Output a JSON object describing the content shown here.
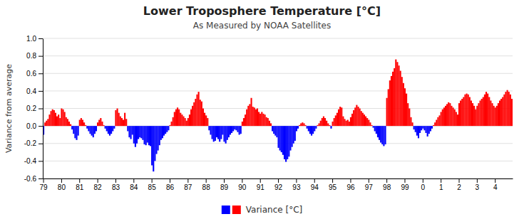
{
  "chart_data": {
    "type": "bar",
    "title": "Lower Troposphere Temperature [°C]",
    "subtitle": "As Measured by NOAA Satellites",
    "y_label": "Variance from average",
    "categories": [
      "79",
      null,
      null,
      null,
      null,
      null,
      null,
      null,
      null,
      null,
      null,
      null,
      "80",
      null,
      null,
      null,
      null,
      null,
      null,
      null,
      null,
      null,
      null,
      null,
      "81",
      null,
      null,
      null,
      null,
      null,
      null,
      null,
      null,
      null,
      null,
      null,
      "82",
      null,
      null,
      null,
      null,
      null,
      null,
      null,
      null,
      null,
      null,
      null,
      "83",
      null,
      null,
      null,
      null,
      null,
      null,
      null,
      null,
      null,
      null,
      null,
      "84",
      null,
      null,
      null,
      null,
      null,
      null,
      null,
      null,
      null,
      null,
      null,
      "85",
      null,
      null,
      null,
      null,
      null,
      null,
      null,
      null,
      null,
      null,
      null,
      "86",
      null,
      null,
      null,
      null,
      null,
      null,
      null,
      null,
      null,
      null,
      null,
      "87",
      null,
      null,
      null,
      null,
      null,
      null,
      null,
      null,
      null,
      null,
      null,
      "88",
      null,
      null,
      null,
      null,
      null,
      null,
      null,
      null,
      null,
      null,
      null,
      "89",
      null,
      null,
      null,
      null,
      null,
      null,
      null,
      null,
      null,
      null,
      null,
      "90",
      null,
      null,
      null,
      null,
      null,
      null,
      null,
      null,
      null,
      null,
      null,
      "91",
      null,
      null,
      null,
      null,
      null,
      null,
      null,
      null,
      null,
      null,
      null,
      "92",
      null,
      null,
      null,
      null,
      null,
      null,
      null,
      null,
      null,
      null,
      null,
      "93",
      null,
      null,
      null,
      null,
      null,
      null,
      null,
      null,
      null,
      null,
      null,
      "94",
      null,
      null,
      null,
      null,
      null,
      null,
      null,
      null,
      null,
      null,
      null,
      "95",
      null,
      null,
      null,
      null,
      null,
      null,
      null,
      null,
      null,
      null,
      null,
      "96",
      null,
      null,
      null,
      null,
      null,
      null,
      null,
      null,
      null,
      null,
      null,
      "97",
      null,
      null,
      null,
      null,
      null,
      null,
      null,
      null,
      null,
      null,
      null,
      "98",
      null,
      null,
      null,
      null,
      null,
      null,
      null,
      null,
      null,
      null,
      null,
      "99",
      null,
      null,
      null,
      null,
      null,
      null,
      null,
      null,
      null,
      null,
      null,
      "0",
      null,
      null,
      null,
      null,
      null,
      null,
      null,
      null,
      null,
      null,
      null,
      "1",
      null,
      null,
      null,
      null,
      null,
      null,
      null,
      null,
      null,
      null,
      null,
      "2",
      null,
      null,
      null,
      null,
      null,
      null,
      null,
      null,
      null,
      null,
      null,
      "3",
      null,
      null,
      null,
      null,
      null,
      null,
      null,
      null,
      null,
      null,
      null,
      "4",
      null,
      null,
      null,
      null,
      null,
      null,
      null,
      null,
      null,
      null,
      null
    ],
    "series": [
      {
        "name": "Variance [°C]",
        "values": [
          -0.1,
          0.04,
          0.06,
          0.08,
          0.13,
          0.17,
          0.19,
          0.18,
          0.15,
          0.11,
          0.13,
          0.09,
          0.2,
          0.19,
          0.16,
          0.1,
          0.08,
          0.05,
          0.02,
          -0.04,
          -0.09,
          -0.14,
          -0.16,
          -0.11,
          0.07,
          0.09,
          0.07,
          0.04,
          0.01,
          -0.03,
          -0.06,
          -0.09,
          -0.11,
          -0.13,
          -0.09,
          -0.06,
          0.04,
          0.07,
          0.09,
          0.05,
          0.01,
          -0.03,
          -0.06,
          -0.09,
          -0.11,
          -0.09,
          -0.06,
          -0.03,
          0.18,
          0.2,
          0.15,
          0.11,
          0.09,
          0.07,
          0.15,
          0.08,
          -0.06,
          -0.13,
          -0.15,
          -0.1,
          -0.2,
          -0.24,
          -0.2,
          -0.15,
          -0.13,
          -0.14,
          -0.16,
          -0.21,
          -0.22,
          -0.19,
          -0.22,
          -0.23,
          -0.45,
          -0.52,
          -0.4,
          -0.32,
          -0.28,
          -0.22,
          -0.16,
          -0.14,
          -0.11,
          -0.09,
          -0.07,
          -0.05,
          0.01,
          0.05,
          0.1,
          0.16,
          0.19,
          0.21,
          0.19,
          0.15,
          0.13,
          0.11,
          0.09,
          0.06,
          0.09,
          0.13,
          0.19,
          0.23,
          0.27,
          0.31,
          0.36,
          0.39,
          0.3,
          0.28,
          0.2,
          0.15,
          0.12,
          0.09,
          -0.05,
          -0.1,
          -0.15,
          -0.18,
          -0.17,
          -0.13,
          -0.15,
          -0.18,
          -0.15,
          -0.1,
          -0.18,
          -0.2,
          -0.16,
          -0.13,
          -0.1,
          -0.08,
          -0.06,
          -0.04,
          -0.05,
          -0.07,
          -0.1,
          -0.09,
          0.05,
          0.09,
          0.13,
          0.19,
          0.23,
          0.25,
          0.32,
          0.22,
          0.21,
          0.19,
          0.2,
          0.16,
          0.14,
          0.16,
          0.14,
          0.13,
          0.1,
          0.09,
          0.06,
          0.03,
          -0.06,
          -0.09,
          -0.11,
          -0.13,
          -0.25,
          -0.28,
          -0.3,
          -0.33,
          -0.38,
          -0.41,
          -0.38,
          -0.35,
          -0.28,
          -0.24,
          -0.2,
          -0.17,
          -0.06,
          -0.03,
          0.01,
          0.03,
          0.04,
          0.03,
          0.01,
          -0.03,
          -0.06,
          -0.09,
          -0.11,
          -0.09,
          -0.06,
          -0.03,
          0.01,
          0.03,
          0.06,
          0.09,
          0.11,
          0.09,
          0.06,
          0.03,
          0.01,
          -0.03,
          0.05,
          0.09,
          0.12,
          0.15,
          0.19,
          0.22,
          0.21,
          0.11,
          0.08,
          0.06,
          0.07,
          0.05,
          0.1,
          0.14,
          0.18,
          0.21,
          0.24,
          0.22,
          0.2,
          0.17,
          0.15,
          0.13,
          0.11,
          0.09,
          0.07,
          0.04,
          0.01,
          -0.02,
          -0.06,
          -0.09,
          -0.13,
          -0.16,
          -0.19,
          -0.21,
          -0.23,
          -0.21,
          0.32,
          0.42,
          0.52,
          0.57,
          0.62,
          0.66,
          0.76,
          0.73,
          0.69,
          0.63,
          0.56,
          0.49,
          0.43,
          0.37,
          0.26,
          0.2,
          0.1,
          0.04,
          -0.04,
          -0.07,
          -0.11,
          -0.14,
          -0.08,
          -0.05,
          -0.03,
          -0.05,
          -0.08,
          -0.12,
          -0.09,
          -0.06,
          -0.03,
          0.01,
          0.04,
          0.07,
          0.1,
          0.12,
          0.16,
          0.19,
          0.21,
          0.23,
          0.25,
          0.27,
          0.26,
          0.23,
          0.21,
          0.19,
          0.16,
          0.13,
          0.26,
          0.29,
          0.31,
          0.33,
          0.36,
          0.37,
          0.36,
          0.33,
          0.29,
          0.26,
          0.23,
          0.19,
          0.23,
          0.26,
          0.29,
          0.31,
          0.33,
          0.36,
          0.39,
          0.37,
          0.33,
          0.29,
          0.26,
          0.23,
          0.21,
          0.23,
          0.26,
          0.29,
          0.31,
          0.33,
          0.36,
          0.39,
          0.41,
          0.39,
          0.36,
          0.31
        ],
        "colors": [
          "#0000ff",
          "#ff0000",
          "#ff0000",
          "#ff0000",
          "#ff0000",
          "#ff0000",
          "#ff0000",
          "#ff0000",
          "#ff0000",
          "#ff0000",
          "#ff0000",
          "#ff0000",
          "#ff0000",
          "#ff0000",
          "#ff0000",
          "#ff0000",
          "#ff0000",
          "#ff0000",
          "#ff0000",
          "#0000ff",
          "#0000ff",
          "#0000ff",
          "#0000ff",
          "#0000ff",
          "#ff0000",
          "#ff0000",
          "#ff0000",
          "#ff0000",
          "#ff0000",
          "#0000ff",
          "#0000ff",
          "#0000ff",
          "#0000ff",
          "#0000ff",
          "#0000ff",
          "#0000ff",
          "#ff0000",
          "#ff0000",
          "#ff0000",
          "#ff0000",
          "#ff0000",
          "#0000ff",
          "#0000ff",
          "#0000ff",
          "#0000ff",
          "#0000ff",
          "#0000ff",
          "#0000ff",
          "#ff0000",
          "#ff0000",
          "#ff0000",
          "#ff0000",
          "#ff0000",
          "#ff0000",
          "#ff0000",
          "#ff0000",
          "#0000ff",
          "#0000ff",
          "#0000ff",
          "#0000ff",
          "#0000ff",
          "#0000ff",
          "#0000ff",
          "#0000ff",
          "#0000ff",
          "#0000ff",
          "#0000ff",
          "#0000ff",
          "#0000ff",
          "#0000ff",
          "#0000ff",
          "#0000ff",
          "#0000ff",
          "#0000ff",
          "#0000ff",
          "#0000ff",
          "#0000ff",
          "#0000ff",
          "#0000ff",
          "#0000ff",
          "#0000ff",
          "#0000ff",
          "#0000ff",
          "#0000ff",
          "#ff0000",
          "#ff0000",
          "#ff0000",
          "#ff0000",
          "#ff0000",
          "#ff0000",
          "#ff0000",
          "#ff0000",
          "#ff0000",
          "#ff0000",
          "#ff0000",
          "#ff0000",
          "#ff0000",
          "#ff0000",
          "#ff0000",
          "#ff0000",
          "#ff0000",
          "#ff0000",
          "#ff0000",
          "#ff0000",
          "#ff0000",
          "#ff0000",
          "#ff0000",
          "#ff0000",
          "#ff0000",
          "#ff0000",
          "#0000ff",
          "#0000ff",
          "#0000ff",
          "#0000ff",
          "#0000ff",
          "#0000ff",
          "#0000ff",
          "#0000ff",
          "#0000ff",
          "#0000ff",
          "#0000ff",
          "#0000ff",
          "#0000ff",
          "#0000ff",
          "#0000ff",
          "#0000ff",
          "#0000ff",
          "#0000ff",
          "#0000ff",
          "#0000ff",
          "#0000ff",
          "#0000ff",
          "#ff0000",
          "#ff0000",
          "#ff0000",
          "#ff0000",
          "#ff0000",
          "#ff0000",
          "#ff0000",
          "#ff0000",
          "#ff0000",
          "#ff0000",
          "#ff0000",
          "#ff0000",
          "#ff0000",
          "#ff0000",
          "#ff0000",
          "#ff0000",
          "#ff0000",
          "#ff0000",
          "#ff0000",
          "#ff0000",
          "#0000ff",
          "#0000ff",
          "#0000ff",
          "#0000ff",
          "#0000ff",
          "#0000ff",
          "#0000ff",
          "#0000ff",
          "#0000ff",
          "#0000ff",
          "#0000ff",
          "#0000ff",
          "#0000ff",
          "#0000ff",
          "#0000ff",
          "#0000ff",
          "#0000ff",
          "#0000ff",
          "#ff0000",
          "#ff0000",
          "#ff0000",
          "#ff0000",
          "#ff0000",
          "#0000ff",
          "#0000ff",
          "#0000ff",
          "#0000ff",
          "#0000ff",
          "#0000ff",
          "#0000ff",
          "#ff0000",
          "#ff0000",
          "#ff0000",
          "#ff0000",
          "#ff0000",
          "#ff0000",
          "#ff0000",
          "#ff0000",
          "#ff0000",
          "#0000ff",
          "#ff0000",
          "#ff0000",
          "#ff0000",
          "#ff0000",
          "#ff0000",
          "#ff0000",
          "#ff0000",
          "#ff0000",
          "#ff0000",
          "#ff0000",
          "#ff0000",
          "#ff0000",
          "#ff0000",
          "#ff0000",
          "#ff0000",
          "#ff0000",
          "#ff0000",
          "#ff0000",
          "#ff0000",
          "#ff0000",
          "#ff0000",
          "#ff0000",
          "#ff0000",
          "#ff0000",
          "#ff0000",
          "#ff0000",
          "#ff0000",
          "#0000ff",
          "#0000ff",
          "#0000ff",
          "#0000ff",
          "#0000ff",
          "#0000ff",
          "#0000ff",
          "#0000ff",
          "#0000ff",
          "#ff0000",
          "#ff0000",
          "#ff0000",
          "#ff0000",
          "#ff0000",
          "#ff0000",
          "#ff0000",
          "#ff0000",
          "#ff0000",
          "#ff0000",
          "#ff0000",
          "#ff0000",
          "#ff0000",
          "#ff0000",
          "#ff0000",
          "#ff0000",
          "#ff0000",
          "#ff0000",
          "#0000ff",
          "#0000ff",
          "#0000ff",
          "#0000ff",
          "#0000ff",
          "#0000ff",
          "#0000ff",
          "#0000ff",
          "#0000ff",
          "#0000ff",
          "#0000ff",
          "#0000ff",
          "#0000ff",
          "#ff0000",
          "#ff0000",
          "#ff0000",
          "#ff0000",
          "#ff0000",
          "#ff0000",
          "#ff0000",
          "#ff0000",
          "#ff0000",
          "#ff0000",
          "#ff0000",
          "#ff0000",
          "#ff0000",
          "#ff0000",
          "#ff0000",
          "#ff0000",
          "#ff0000",
          "#ff0000",
          "#ff0000",
          "#ff0000",
          "#ff0000",
          "#ff0000",
          "#ff0000",
          "#ff0000",
          "#ff0000",
          "#ff0000",
          "#ff0000",
          "#ff0000",
          "#ff0000",
          "#ff0000",
          "#ff0000",
          "#ff0000",
          "#ff0000",
          "#ff0000",
          "#ff0000",
          "#ff0000",
          "#ff0000",
          "#ff0000",
          "#ff0000",
          "#ff0000",
          "#ff0000",
          "#ff0000",
          "#ff0000",
          "#ff0000",
          "#ff0000",
          "#ff0000",
          "#ff0000",
          "#ff0000",
          "#ff0000",
          "#ff0000",
          "#ff0000",
          "#ff0000",
          "#ff0000"
        ]
      }
    ],
    "ylim": [
      -0.6,
      1.0
    ],
    "yticks": [
      -0.6,
      -0.4,
      -0.2,
      {
        "value": 0.0,
        "label": "0.0"
      },
      0.2,
      0.4,
      0.6,
      0.8,
      {
        "value": 1.0,
        "label": "1.0"
      }
    ],
    "grid": true,
    "legend": "bottom"
  }
}
